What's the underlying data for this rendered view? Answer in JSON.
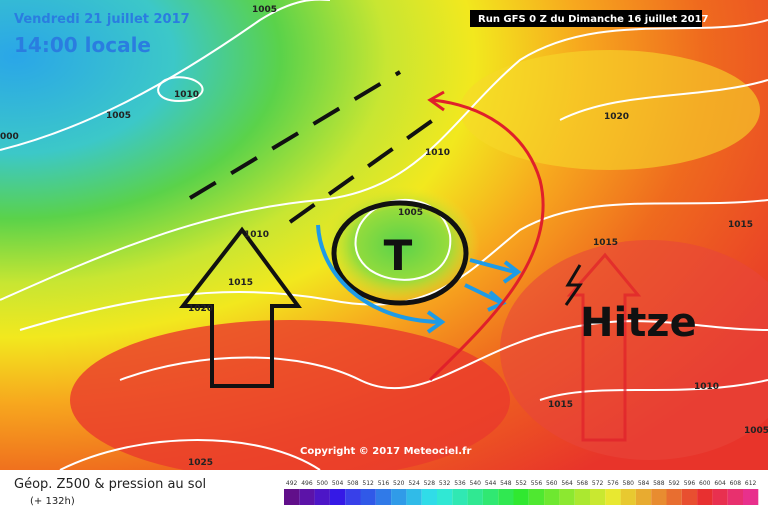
{
  "header": {
    "date": "Vendredi 21 juillet 2017",
    "time": "14:00 locale",
    "run": "Run GFS 0 Z du Dimanche 16 juillet 2017"
  },
  "isobar_labels": [
    "1005",
    "1010",
    "1005",
    "000",
    "1010",
    "1005",
    "1010",
    "1015",
    "1020",
    "1020",
    "1015",
    "1015",
    "1010",
    "1015",
    "1025",
    "1005"
  ],
  "annotations": {
    "low": "T",
    "heat": "Hitze"
  },
  "copyright": "Copyright © 2017 Meteociel.fr",
  "footer": {
    "title": "Géop. Z500 & pression au sol",
    "lead": "(+ 132h)"
  },
  "scale": [
    492,
    496,
    500,
    504,
    508,
    512,
    516,
    520,
    524,
    528,
    532,
    536,
    540,
    544,
    548,
    552,
    556,
    560,
    564,
    568,
    572,
    576,
    580,
    584,
    588,
    592,
    596,
    600,
    604,
    608,
    612
  ]
}
